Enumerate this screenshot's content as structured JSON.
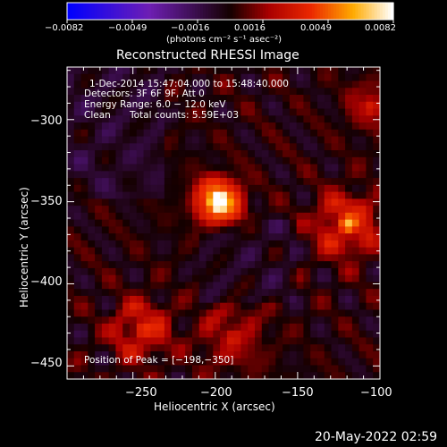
{
  "chart_data": {
    "type": "heatmap",
    "title": "Reconstructed RHESSI Image",
    "xlabel": "Heliocentric X (arcsec)",
    "ylabel": "Heliocentric Y (arcsec)",
    "xlim": [
      -290,
      -100
    ],
    "ylim": [
      -458,
      -268
    ],
    "x_ticks": [
      -250,
      -200,
      -150,
      -100
    ],
    "x_tick_labels": [
      "−250",
      "−200",
      "−150",
      "−100"
    ],
    "y_ticks": [
      -300,
      -350,
      -400,
      -450
    ],
    "y_tick_labels": [
      "−300",
      "−350",
      "−400",
      "−450"
    ],
    "colorbar": {
      "range": [
        -0.0082,
        0.0082
      ],
      "tick_labels": [
        "−0.0082",
        "−0.0049",
        "−0.0016",
        "0.0016",
        "0.0049",
        "0.0082"
      ],
      "units": "(photons cm⁻² s⁻¹ asec⁻²)",
      "colormap": "rhessi-blue-purple-red-yellow-white"
    },
    "annotations": {
      "time_range": "1-Dec-2014 15:47:04.000 to 15:48:40.000",
      "detectors": "Detectors: 3F 6F 9F, Att 0",
      "energy_range": "Energy Range: 6.0 − 12.0 keV",
      "clean_label": "Clean",
      "total_counts": "Total counts: 5.59E+03",
      "peak_position": "Position of Peak = [−198,−350]"
    },
    "peak_x": -198,
    "peak_y": -350,
    "date_stamp": "20-May-2022 02:59"
  },
  "colors": {
    "background": "#000000",
    "foreground": "#ffffff"
  }
}
